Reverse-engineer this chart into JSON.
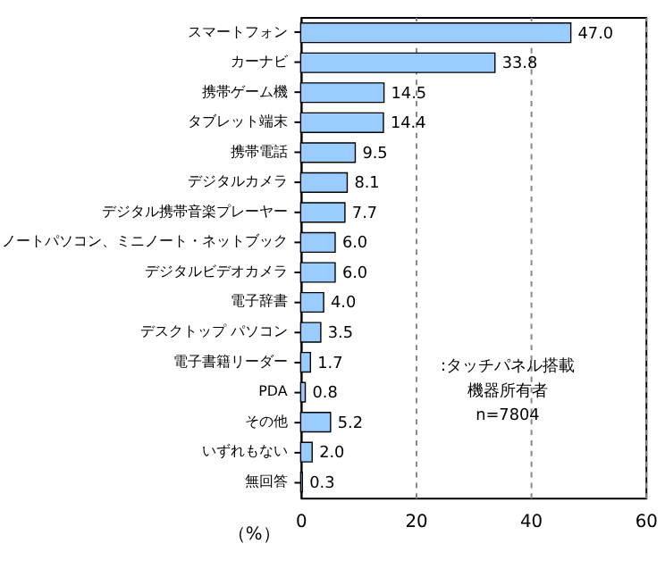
{
  "chart_data": {
    "type": "bar",
    "orientation": "horizontal",
    "categories": [
      "スマートフォン",
      "カーナビ",
      "携帯ゲーム機",
      "タブレット端末",
      "携帯電話",
      "デジタルカメラ",
      "デジタル携帯音楽プレーヤー",
      "ノートパソコン、ミニノート・ネットブック",
      "デジタルビデオカメラ",
      "電子辞書",
      "デスクトップ パソコン",
      "電子書籍リーダー",
      "PDA",
      "その他",
      "いずれもない",
      "無回答"
    ],
    "values": [
      47.0,
      33.8,
      14.5,
      14.4,
      9.5,
      8.1,
      7.7,
      6.0,
      6.0,
      4.0,
      3.5,
      1.7,
      0.8,
      5.2,
      2.0,
      0.3
    ],
    "value_labels": [
      "47.0",
      "33.8",
      "14.5",
      "14.4",
      "9.5",
      "8.1",
      "7.7",
      "6.0",
      "6.0",
      "4.0",
      "3.5",
      "1.7",
      "0.8",
      "5.2",
      "2.0",
      "0.3"
    ],
    "color": "#99ccff",
    "xlabel": "（%）",
    "xlim": [
      0,
      60
    ],
    "xticks": [
      0,
      20,
      40,
      60
    ],
    "grid": "x",
    "annotations": [
      ":タッチパネル搭載",
      "機器所有者",
      "n=7804"
    ]
  }
}
